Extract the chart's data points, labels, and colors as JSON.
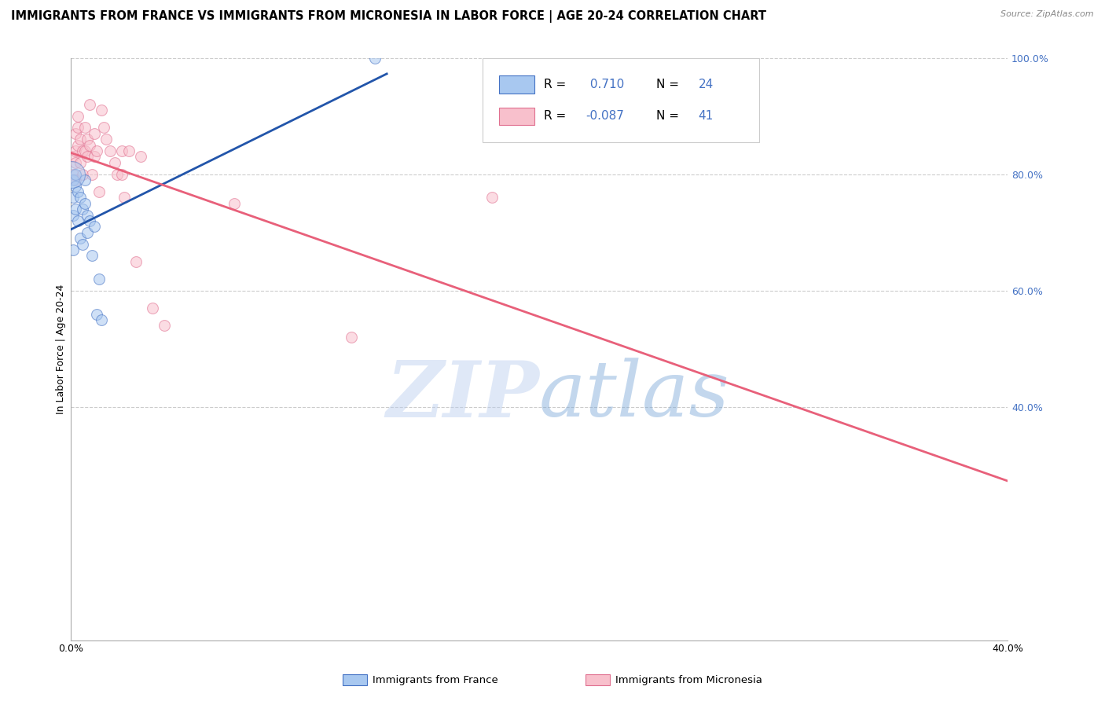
{
  "title": "IMMIGRANTS FROM FRANCE VS IMMIGRANTS FROM MICRONESIA IN LABOR FORCE | AGE 20-24 CORRELATION CHART",
  "source": "Source: ZipAtlas.com",
  "ylabel": "In Labor Force | Age 20-24",
  "xlim": [
    0.0,
    0.4
  ],
  "ylim": [
    0.0,
    1.0
  ],
  "xticks": [
    0.0,
    0.1,
    0.2,
    0.3,
    0.4
  ],
  "xtick_labels": [
    "0.0%",
    "",
    "",
    "",
    "40.0%"
  ],
  "yticks_right": [
    0.4,
    0.6,
    0.8,
    1.0
  ],
  "ytick_labels_right": [
    "40.0%",
    "60.0%",
    "80.0%",
    "100.0%"
  ],
  "yticks_grid": [
    0.4,
    0.6,
    0.8,
    1.0
  ],
  "france_color": "#a8c8f0",
  "micronesia_color": "#f8c0cc",
  "france_edge_color": "#4472c4",
  "micronesia_edge_color": "#e07090",
  "trend_france_color": "#2255aa",
  "trend_micronesia_color": "#e8607a",
  "watermark_text": "ZIPatlas",
  "france_x": [
    0.001,
    0.001,
    0.001,
    0.001,
    0.002,
    0.002,
    0.002,
    0.003,
    0.003,
    0.004,
    0.004,
    0.005,
    0.005,
    0.006,
    0.006,
    0.007,
    0.007,
    0.008,
    0.009,
    0.01,
    0.011,
    0.012,
    0.013,
    0.13
  ],
  "france_y": [
    0.79,
    0.76,
    0.73,
    0.67,
    0.8,
    0.78,
    0.74,
    0.77,
    0.72,
    0.76,
    0.69,
    0.74,
    0.68,
    0.79,
    0.75,
    0.73,
    0.7,
    0.72,
    0.66,
    0.71,
    0.56,
    0.62,
    0.55,
    1.0
  ],
  "micronesia_x": [
    0.001,
    0.001,
    0.002,
    0.002,
    0.002,
    0.002,
    0.003,
    0.003,
    0.003,
    0.004,
    0.004,
    0.005,
    0.005,
    0.006,
    0.006,
    0.007,
    0.007,
    0.008,
    0.008,
    0.009,
    0.01,
    0.01,
    0.011,
    0.012,
    0.013,
    0.014,
    0.015,
    0.017,
    0.019,
    0.02,
    0.022,
    0.022,
    0.023,
    0.025,
    0.028,
    0.03,
    0.035,
    0.04,
    0.07,
    0.12,
    0.18
  ],
  "micronesia_y": [
    0.83,
    0.8,
    0.87,
    0.84,
    0.82,
    0.79,
    0.85,
    0.88,
    0.9,
    0.86,
    0.82,
    0.84,
    0.8,
    0.88,
    0.84,
    0.86,
    0.83,
    0.85,
    0.92,
    0.8,
    0.87,
    0.83,
    0.84,
    0.77,
    0.91,
    0.88,
    0.86,
    0.84,
    0.82,
    0.8,
    0.84,
    0.8,
    0.76,
    0.84,
    0.65,
    0.83,
    0.57,
    0.54,
    0.75,
    0.52,
    0.76
  ],
  "marker_size": 100,
  "alpha": 0.55,
  "grid_color": "#cccccc",
  "bg_color": "#ffffff",
  "title_fontsize": 10.5,
  "axis_label_fontsize": 9,
  "tick_fontsize": 9,
  "legend_fontsize": 11,
  "france_trend_x": [
    0.0,
    0.135
  ],
  "micro_trend_x": [
    0.0,
    0.4
  ]
}
